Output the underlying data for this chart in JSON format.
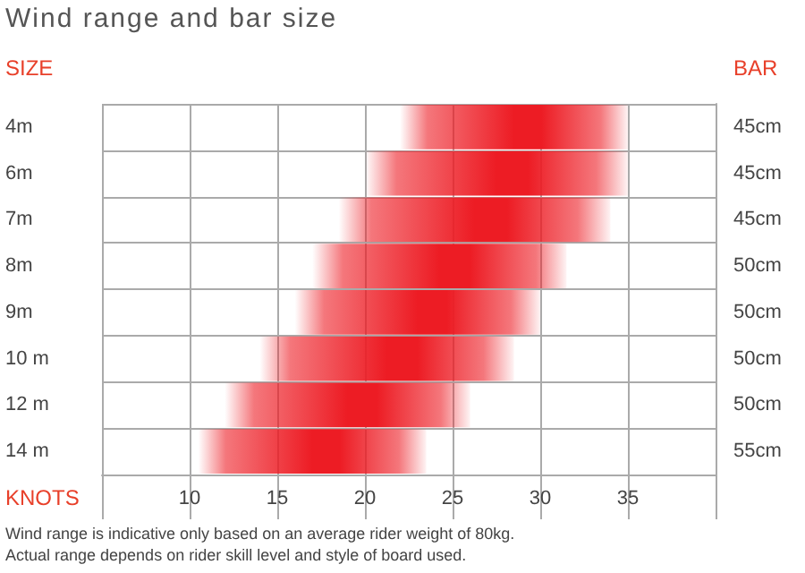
{
  "chart_data": {
    "type": "bar",
    "orientation": "horizontal",
    "title": "Wind range and bar size",
    "xlabel": "KNOTS",
    "ylabel": "SIZE",
    "y2label": "BAR",
    "categories": [
      "4m",
      "6m",
      "7m",
      "8m",
      "9m",
      "10 m",
      "12 m",
      "14 m"
    ],
    "y2_categories": [
      "45cm",
      "45cm",
      "45cm",
      "50cm",
      "50cm",
      "50cm",
      "50cm",
      "55cm"
    ],
    "base": [
      22,
      20,
      18.5,
      17,
      16,
      14,
      12,
      10.5
    ],
    "values": [
      13,
      15,
      15.5,
      14.5,
      14,
      14.5,
      14,
      13
    ],
    "color": "#ed1c24",
    "xlim": [
      5,
      40
    ],
    "xticks": [
      {
        "value": 5,
        "label": null
      },
      10,
      15,
      20,
      25,
      30,
      35,
      {
        "value": 40,
        "label": null
      }
    ],
    "grid": true,
    "annotations": [
      "Wind range is indicative only based on an average rider weight of 80kg.",
      "Actual range depends on rider skill level and style of board used."
    ]
  }
}
